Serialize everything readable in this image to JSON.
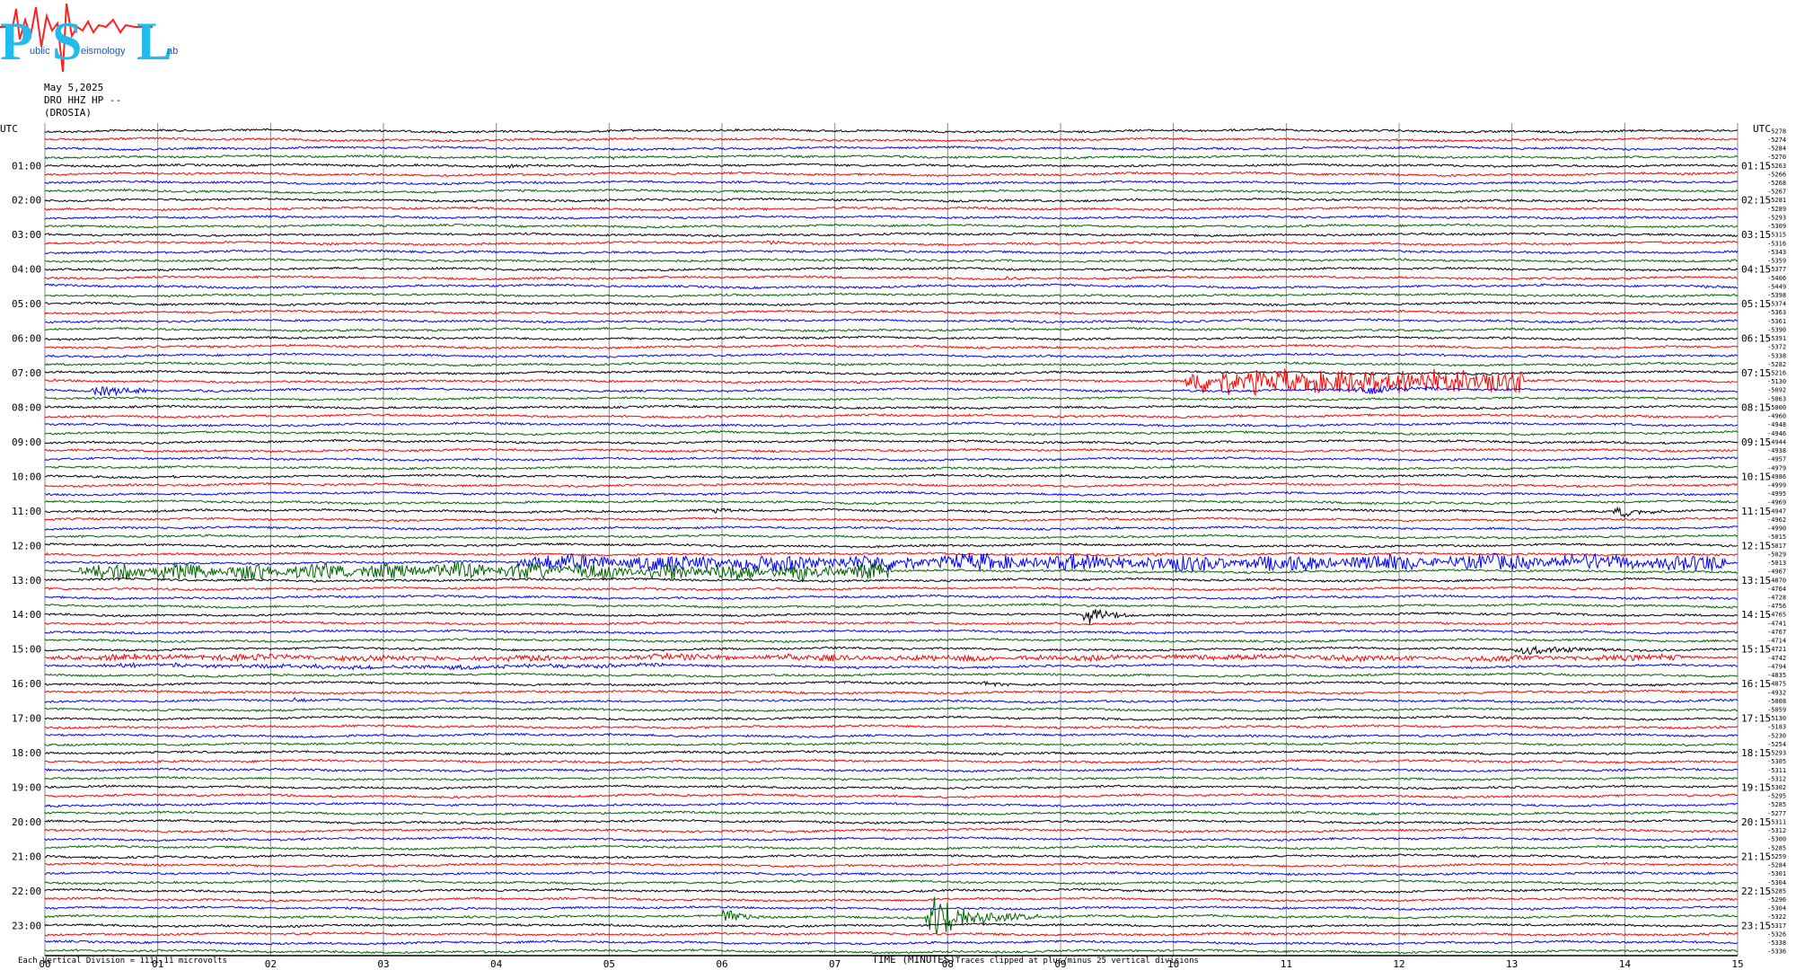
{
  "logo": {
    "letters": [
      "P",
      "S",
      "L"
    ],
    "words": [
      "ublic",
      "eismology",
      "ab"
    ]
  },
  "header": {
    "date": "May 5,2025",
    "channel": "DRO HHZ HP --",
    "station": "(DROSIA)"
  },
  "footer": {
    "scale": "Each Vertical Division = 1111.11 microvolts",
    "xlabel": "TIME (MINUTES)",
    "clip": "Traces clipped at plus/minus 25 vertical divisions"
  },
  "colors": {
    "cycle": [
      "#000000",
      "#ff0000",
      "#0000ff",
      "#006400"
    ],
    "grid": "#888888",
    "logo_blue": "#22bbee",
    "logo_red": "#ff2020"
  },
  "chart_data": {
    "type": "line",
    "title": "",
    "xlabel": "TIME (MINUTES)",
    "xlim": [
      0,
      15
    ],
    "x_ticks": [
      "00",
      "01",
      "02",
      "03",
      "04",
      "05",
      "06",
      "07",
      "08",
      "09",
      "10",
      "11",
      "12",
      "13",
      "14",
      "15"
    ],
    "left_axis_label": "UTC",
    "right_axis_label": "UTC",
    "left_hour_labels": [
      "01:00",
      "02:00",
      "03:00",
      "04:00",
      "05:00",
      "06:00",
      "07:00",
      "08:00",
      "09:00",
      "10:00",
      "11:00",
      "12:00",
      "13:00",
      "14:00",
      "15:00",
      "16:00",
      "17:00",
      "18:00",
      "19:00",
      "20:00",
      "21:00",
      "22:00",
      "23:00"
    ],
    "right_hour_labels": [
      "01:15",
      "02:15",
      "03:15",
      "04:15",
      "05:15",
      "06:15",
      "07:15",
      "08:15",
      "09:15",
      "10:15",
      "11:15",
      "12:15",
      "13:15",
      "14:15",
      "15:15",
      "16:15",
      "17:15",
      "18:15",
      "19:15",
      "20:15",
      "21:15",
      "22:15",
      "23:15"
    ],
    "rows_per_hour": 4,
    "trace_count": 96,
    "offsets": [
      "-5278",
      "-5274",
      "-5284",
      "-5270",
      "-5263",
      "-5266",
      "-5268",
      "-5267",
      "-5281",
      "-5289",
      "-5293",
      "-5309",
      "-5315",
      "-5316",
      "-5343",
      "-5359",
      "-5377",
      "-5406",
      "-5449",
      "-5398",
      "-5374",
      "-5363",
      "-5361",
      "-5390",
      "-5391",
      "-5372",
      "-5338",
      "-5282",
      "-5216",
      "-5130",
      "-5092",
      "-5063",
      "-5000",
      "-4960",
      "-4948",
      "-4946",
      "-4944",
      "-4938",
      "-4957",
      "-4979",
      "-4986",
      "-4999",
      "-4995",
      "-4969",
      "-4947",
      "-4962",
      "-4990",
      "-5015",
      "-5017",
      "-5029",
      "-5013",
      "-4967",
      "-4870",
      "-4764",
      "-4728",
      "-4756",
      "-4765",
      "-4741",
      "-4767",
      "-4714",
      "-4721",
      "-4742",
      "-4794",
      "-4835",
      "-4875",
      "-4932",
      "-5008",
      "-5059",
      "-5130",
      "-5183",
      "-5230",
      "-5254",
      "-5293",
      "-5305",
      "-5311",
      "-5312",
      "-5302",
      "-5295",
      "-5285",
      "-5277",
      "-5311",
      "-5312",
      "-5300",
      "-5285",
      "-5259",
      "-5284",
      "-5301",
      "-5304",
      "-5285",
      "-5296",
      "-5304",
      "-5322",
      "-5317",
      "-5326",
      "-5338",
      "-5336"
    ],
    "events": [
      {
        "row": 3,
        "minute": 5.0,
        "dur": 0.3,
        "amp": 3
      },
      {
        "row": 4,
        "minute": 4.1,
        "dur": 0.6,
        "amp": 2
      },
      {
        "row": 13,
        "minute": 6.4,
        "dur": 0.4,
        "amp": 2
      },
      {
        "row": 13,
        "minute": 9.6,
        "dur": 0.2,
        "amp": 2
      },
      {
        "row": 17,
        "minute": 8.5,
        "dur": 0.3,
        "amp": 3
      },
      {
        "row": 18,
        "minute": 14.7,
        "dur": 0.4,
        "amp": 2
      },
      {
        "row": 25,
        "minute": 14.3,
        "dur": 0.2,
        "amp": 2
      },
      {
        "row": 29,
        "minute": 10.1,
        "dur": 3.0,
        "amp": 14
      },
      {
        "row": 30,
        "minute": 0.4,
        "dur": 1.4,
        "amp": 7
      },
      {
        "row": 30,
        "minute": 11.6,
        "dur": 1.3,
        "amp": 8
      },
      {
        "row": 32,
        "minute": 4.5,
        "dur": 0.3,
        "amp": 2
      },
      {
        "row": 36,
        "minute": 8.0,
        "dur": 0.2,
        "amp": 2
      },
      {
        "row": 40,
        "minute": 1.1,
        "dur": 0.3,
        "amp": 2
      },
      {
        "row": 41,
        "minute": 5.8,
        "dur": 0.2,
        "amp": 2
      },
      {
        "row": 44,
        "minute": 5.9,
        "dur": 0.6,
        "amp": 3
      },
      {
        "row": 44,
        "minute": 13.9,
        "dur": 0.8,
        "amp": 7
      },
      {
        "row": 45,
        "minute": 9.4,
        "dur": 0.1,
        "amp": 3
      },
      {
        "row": 49,
        "minute": 9.8,
        "dur": 0.4,
        "amp": 3
      },
      {
        "row": 50,
        "minute": 4.2,
        "dur": 10.7,
        "amp": 9
      },
      {
        "row": 51,
        "minute": 0.3,
        "dur": 7.2,
        "amp": 9
      },
      {
        "row": 56,
        "minute": 9.2,
        "dur": 0.5,
        "amp": 22
      },
      {
        "row": 59,
        "minute": 6.1,
        "dur": 0.3,
        "amp": 2
      },
      {
        "row": 60,
        "minute": 13.0,
        "dur": 1.7,
        "amp": 6
      },
      {
        "row": 60,
        "minute": 10.3,
        "dur": 0.6,
        "amp": 2
      },
      {
        "row": 61,
        "minute": 0.0,
        "dur": 14.5,
        "amp": 3
      },
      {
        "row": 62,
        "minute": 0.5,
        "dur": 5.0,
        "amp": 2
      },
      {
        "row": 64,
        "minute": 6.1,
        "dur": 0.3,
        "amp": 3
      },
      {
        "row": 64,
        "minute": 8.3,
        "dur": 0.6,
        "amp": 3
      },
      {
        "row": 66,
        "minute": 2.2,
        "dur": 0.3,
        "amp": 3
      },
      {
        "row": 72,
        "minute": 6.0,
        "dur": 0.3,
        "amp": 2
      },
      {
        "row": 76,
        "minute": 8.1,
        "dur": 0.3,
        "amp": 2
      },
      {
        "row": 91,
        "minute": 6.0,
        "dur": 0.5,
        "amp": 14
      },
      {
        "row": 91,
        "minute": 7.8,
        "dur": 1.3,
        "amp": 30
      }
    ]
  }
}
